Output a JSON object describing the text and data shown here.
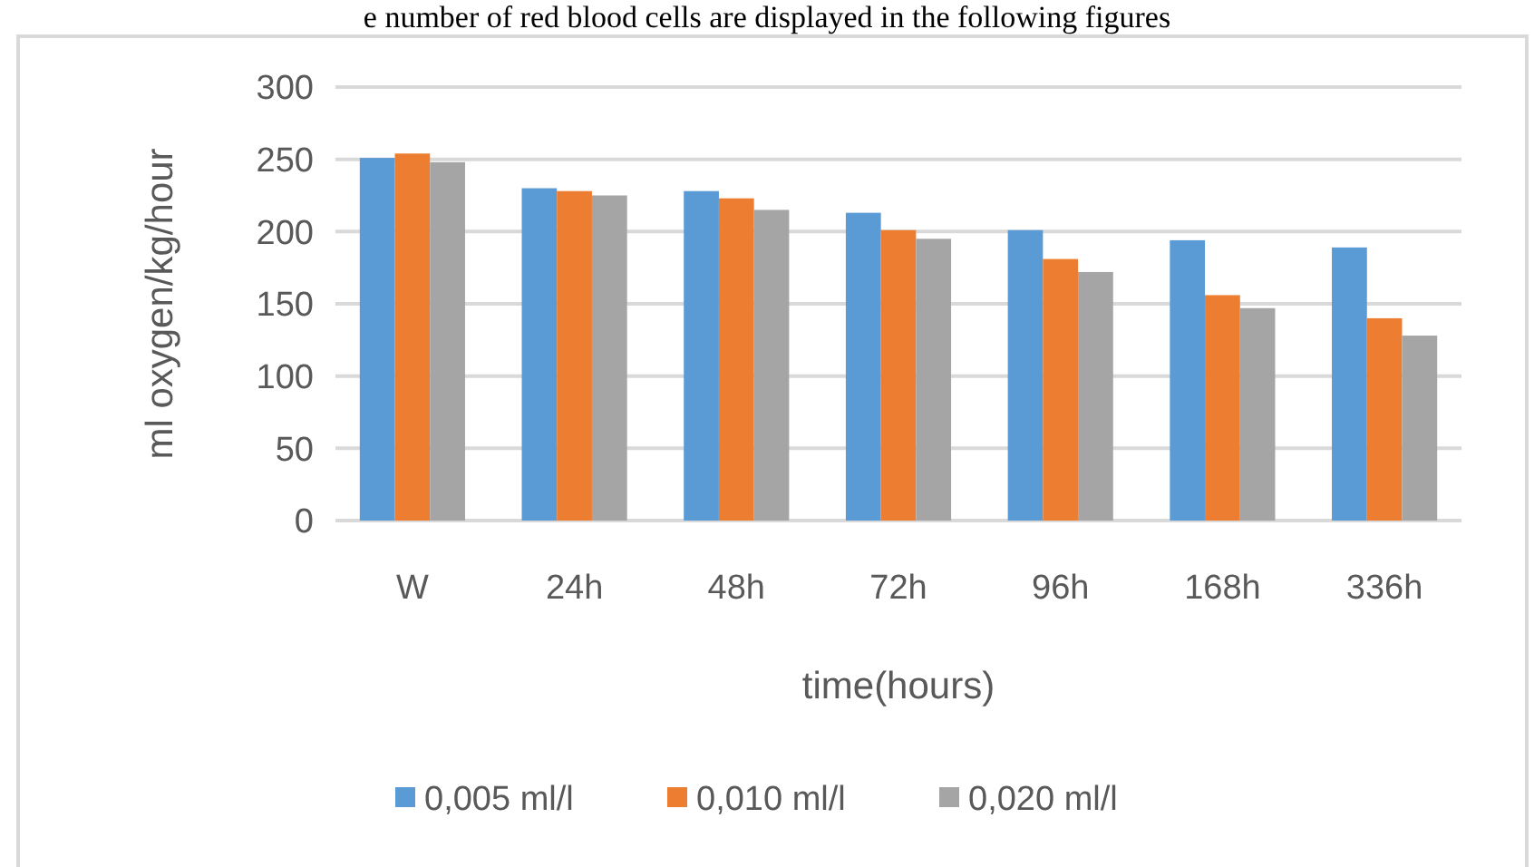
{
  "chart_data": {
    "type": "bar",
    "xlabel": "time(hours)",
    "ylabel": "ml oxygen/kg/hour",
    "annotations": [
      "e number of red blood cells are displayed in the following figures"
    ],
    "categories": [
      "W",
      "24h",
      "48h",
      "72h",
      "96h",
      "168h",
      "336h"
    ],
    "series": [
      {
        "name": "0,005 ml/l",
        "color": "#5b9bd5",
        "values": [
          251,
          230,
          228,
          213,
          201,
          194,
          189
        ]
      },
      {
        "name": "0,010 ml/l",
        "color": "#ed7d31",
        "values": [
          254,
          228,
          223,
          201,
          181,
          156,
          140
        ]
      },
      {
        "name": "0,020 ml/l",
        "color": "#a5a5a5",
        "values": [
          248,
          225,
          215,
          195,
          172,
          147,
          128
        ]
      }
    ],
    "ylim": [
      0,
      300
    ],
    "yticks": [
      0,
      50,
      100,
      150,
      200,
      250,
      300
    ],
    "grid": "y",
    "legend": "bottom"
  }
}
